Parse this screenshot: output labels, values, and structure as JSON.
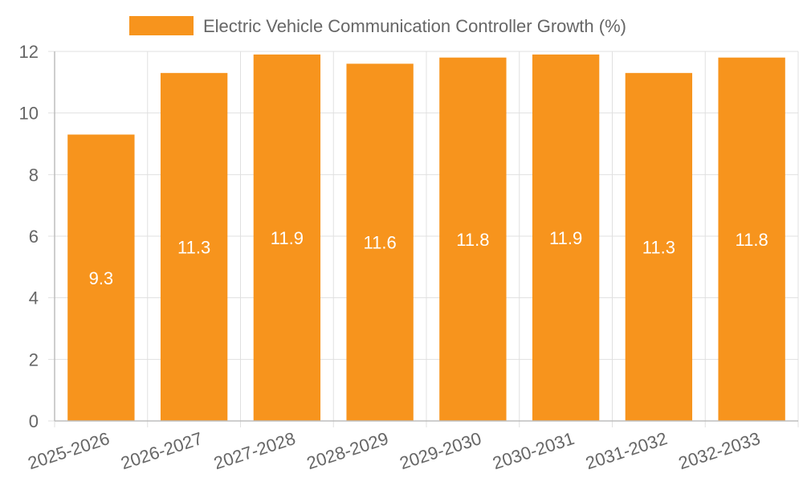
{
  "chart_data": {
    "type": "bar",
    "title": "",
    "xlabel": "",
    "ylabel": "",
    "categories": [
      "2025-2026",
      "2026-2027",
      "2027-2028",
      "2028-2029",
      "2029-2030",
      "2030-2031",
      "2031-2032",
      "2032-2033"
    ],
    "series": [
      {
        "name": "Electric Vehicle Communication Controller Growth (%)",
        "values": [
          9.3,
          11.3,
          11.9,
          11.6,
          11.8,
          11.9,
          11.3,
          11.8
        ],
        "color": "#f7941d"
      }
    ],
    "ylim": [
      0,
      12
    ],
    "yticks": [
      0,
      2,
      4,
      6,
      8,
      10,
      12
    ],
    "grid": true,
    "legend_position": "top-center",
    "data_labels": [
      "9.3",
      "11.3",
      "11.9",
      "11.6",
      "11.8",
      "11.9",
      "11.3",
      "11.8"
    ]
  }
}
